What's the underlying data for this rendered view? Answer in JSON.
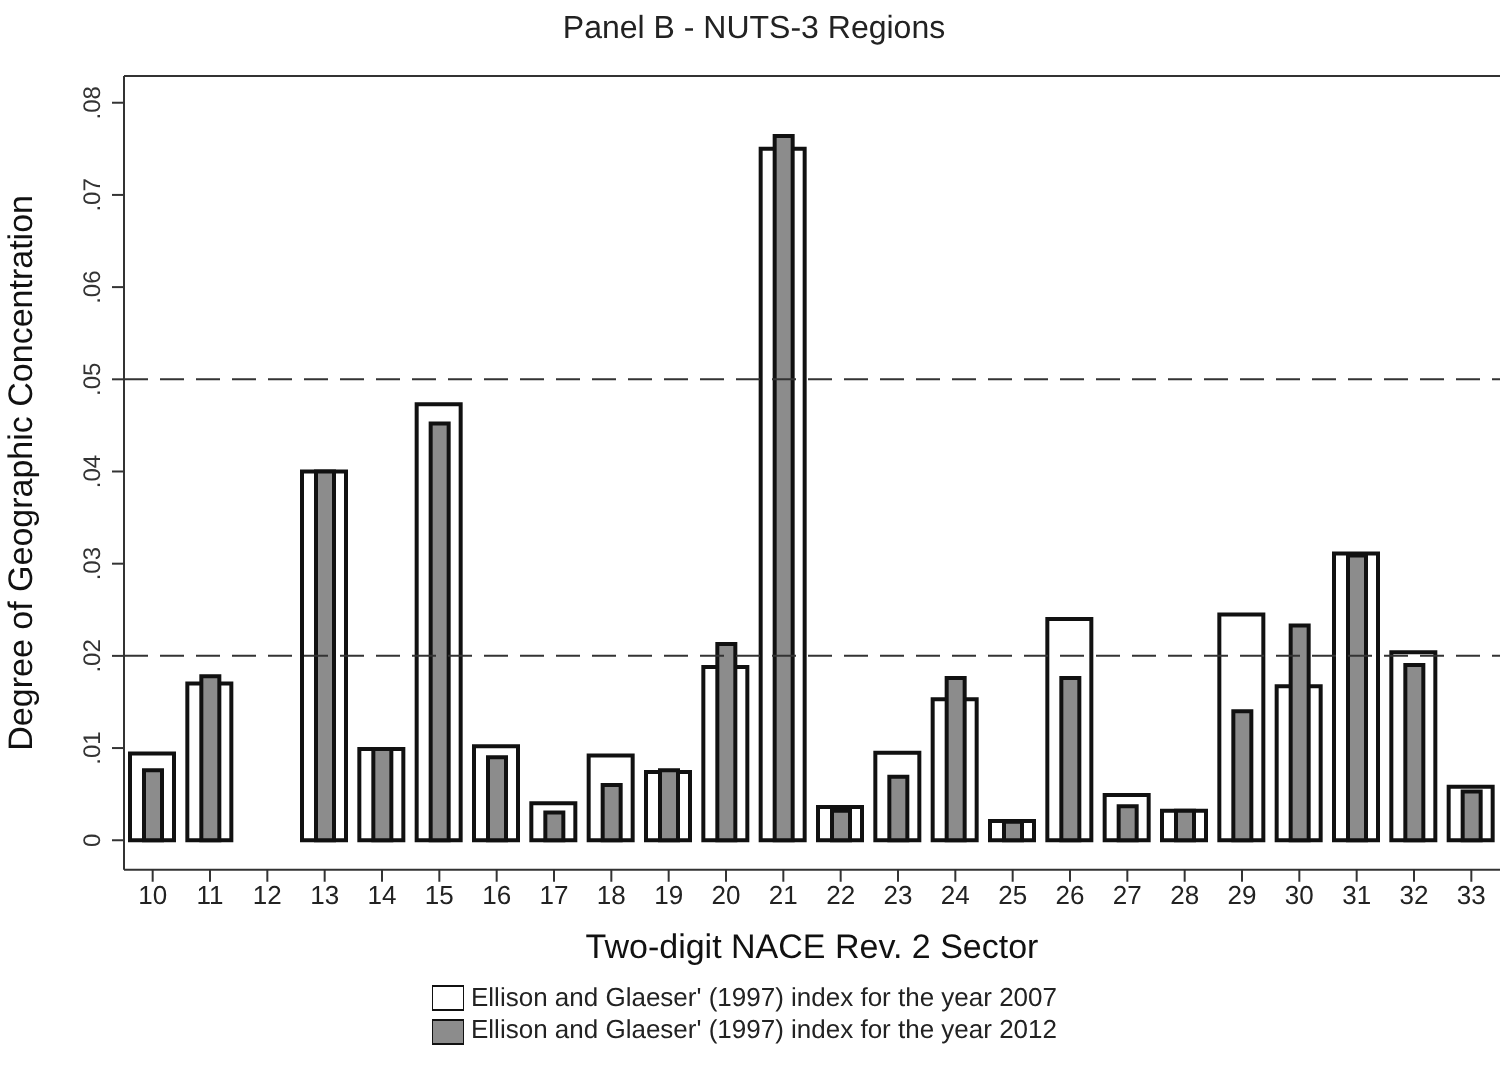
{
  "chart_data": {
    "type": "bar",
    "title": "Panel B - NUTS-3 Regions",
    "xlabel": "Two-digit NACE Rev. 2 Sector",
    "ylabel": "Degree of Geographic Concentration",
    "categories": [
      "10",
      "11",
      "12",
      "13",
      "14",
      "15",
      "16",
      "17",
      "18",
      "19",
      "20",
      "21",
      "22",
      "23",
      "24",
      "25",
      "26",
      "27",
      "28",
      "29",
      "30",
      "31",
      "32",
      "33"
    ],
    "series": [
      {
        "name": "Ellison and Glaeser' (1997) index for the year 2007",
        "color": "#ffffff",
        "values": [
          0.0094,
          0.017,
          null,
          0.04,
          0.0099,
          0.0473,
          0.0102,
          0.004,
          0.0092,
          0.0074,
          0.0188,
          0.075,
          0.0036,
          0.0095,
          0.0153,
          0.0021,
          0.024,
          0.0049,
          0.0032,
          0.0245,
          0.0167,
          0.0311,
          0.0204,
          0.0058
        ]
      },
      {
        "name": "Ellison and Glaeser' (1997) index for the year 2012",
        "color": "#8c8c8c",
        "values": [
          0.0076,
          0.0178,
          null,
          0.04,
          0.0099,
          0.0452,
          0.009,
          0.003,
          0.006,
          0.0076,
          0.0213,
          0.0764,
          0.0032,
          0.0069,
          0.0176,
          0.002,
          0.0176,
          0.0037,
          0.0032,
          0.014,
          0.0233,
          0.0309,
          0.019,
          0.0053
        ]
      }
    ],
    "ylim": [
      -0.0032,
      0.0829
    ],
    "yticks": [
      0,
      {
        "value": 0.01,
        "label": ".01"
      },
      {
        "value": 0.02,
        "label": ".02"
      },
      {
        "value": 0.03,
        "label": ".03"
      },
      {
        "value": 0.04,
        "label": ".04"
      },
      {
        "value": 0.05,
        "label": ".05"
      },
      {
        "value": 0.06,
        "label": ".06"
      },
      {
        "value": 0.07,
        "label": ".07"
      },
      {
        "value": 0.08,
        "label": ".08"
      }
    ],
    "ref_lines": [
      {
        "axis": "y",
        "value": 0.02,
        "line_style": "dashed",
        "color": "#333333"
      },
      {
        "axis": "y",
        "value": 0.05,
        "line_style": "dashed",
        "color": "#333333"
      }
    ],
    "grid": false,
    "legend": "bottom"
  }
}
